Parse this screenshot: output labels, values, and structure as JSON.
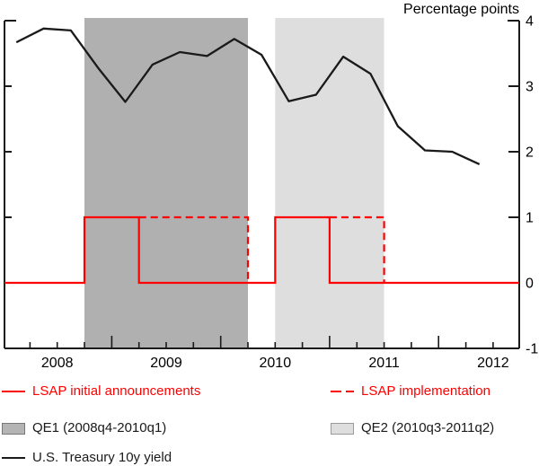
{
  "title": "Percentage points",
  "legend": {
    "announcements": "LSAP initial announcements",
    "implementation": "LSAP implementation",
    "qe1": "QE1 (2008q4-2010q1)",
    "qe2": "QE2 (2010q3-2011q2)",
    "yield": "U.S. Treasury 10y yield"
  },
  "colors": {
    "red": "#fe0000",
    "black_line": "#1a1a1a",
    "qe1_band": "#b0b0b0",
    "qe2_band": "#dedede",
    "axis": "#1a1a1a"
  },
  "chart_data": {
    "type": "line",
    "title": "Percentage points",
    "ylabel": "Percentage points",
    "ylabel_side": "right",
    "ylim": [
      -1,
      4
    ],
    "yticks": [
      "4",
      "3",
      "2",
      "1",
      "0",
      "-1"
    ],
    "ytick_values": [
      4,
      3,
      2,
      1,
      0,
      -1
    ],
    "xlim": [
      2008.016,
      2012.74
    ],
    "year_tick_values": [
      2009,
      2010,
      2011,
      2012
    ],
    "quarter_tick_step": 0.25,
    "x_year_labels": [
      {
        "label": "2008",
        "x": 2008.5
      },
      {
        "label": "2009",
        "x": 2009.5
      },
      {
        "label": "2010",
        "x": 2010.5
      },
      {
        "label": "2011",
        "x": 2011.5
      },
      {
        "label": "2012",
        "x": 2012.5
      }
    ],
    "bands": [
      {
        "name": "QE1",
        "label": "QE1 (2008q4-2010q1)",
        "from": 2008.75,
        "to": 2010.25,
        "color": "#b0b0b0"
      },
      {
        "name": "QE2",
        "label": "QE2 (2010q3-2011q2)",
        "from": 2010.5,
        "to": 2011.5,
        "color": "#dedede"
      }
    ],
    "series": [
      {
        "name": "U.S. Treasury 10y yield",
        "kind": "line",
        "color": "#1a1a1a",
        "x_labels": [
          "2008q1",
          "2008q2",
          "2008q3",
          "2008q4",
          "2009q1",
          "2009q2",
          "2009q3",
          "2009q4",
          "2010q1",
          "2010q2",
          "2010q3",
          "2010q4",
          "2011q1",
          "2011q2",
          "2011q3",
          "2011q4",
          "2012q1",
          "2012q2"
        ],
        "x": [
          2008.125,
          2008.375,
          2008.625,
          2008.875,
          2009.125,
          2009.375,
          2009.625,
          2009.875,
          2010.125,
          2010.375,
          2010.625,
          2010.875,
          2011.125,
          2011.375,
          2011.625,
          2011.875,
          2012.125,
          2012.375
        ],
        "values": [
          3.67,
          3.88,
          3.85,
          3.28,
          2.76,
          3.33,
          3.52,
          3.46,
          3.72,
          3.48,
          2.77,
          2.87,
          3.45,
          3.19,
          2.39,
          2.02,
          2.0,
          1.81
        ]
      },
      {
        "name": "LSAP initial announcements",
        "kind": "step",
        "style": "solid",
        "color": "#fe0000",
        "low": 0,
        "high": 1,
        "high_intervals": [
          [
            2008.75,
            2009.25
          ],
          [
            2010.5,
            2011.0
          ]
        ]
      },
      {
        "name": "LSAP implementation",
        "kind": "step",
        "style": "dashed",
        "color": "#fe0000",
        "low": 0,
        "high": 1,
        "high_intervals": [
          [
            2009.25,
            2010.25
          ],
          [
            2011.0,
            2011.5
          ]
        ]
      }
    ],
    "legend_position": "below"
  }
}
